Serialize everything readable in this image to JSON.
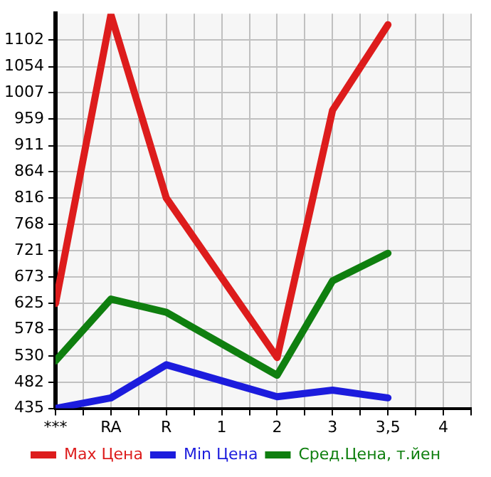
{
  "chart_data": {
    "type": "line",
    "categories": [
      "***",
      "RA",
      "R",
      "1",
      "2",
      "3",
      "3,5",
      "4"
    ],
    "series": [
      {
        "name": "Max Цена",
        "color": "#dd1c1c",
        "values": [
          625,
          1148,
          816,
          null,
          527,
          975,
          1130,
          null
        ]
      },
      {
        "name": "Min Цена",
        "color": "#1c1cdd",
        "values": [
          435,
          454,
          514,
          null,
          456,
          468,
          454,
          null
        ]
      },
      {
        "name": "Сред.Цена, т.йен",
        "color": "#0f7f0f",
        "values": [
          521,
          633,
          609,
          null,
          495,
          666,
          716,
          null
        ]
      }
    ],
    "ylim": [
      435,
      1150
    ],
    "yticks": [
      435,
      482,
      530,
      578,
      625,
      673,
      721,
      768,
      816,
      864,
      911,
      959,
      1007,
      1054,
      1102
    ],
    "grid": true,
    "legend": "bottom",
    "marker": "none",
    "line_style": "solid"
  }
}
